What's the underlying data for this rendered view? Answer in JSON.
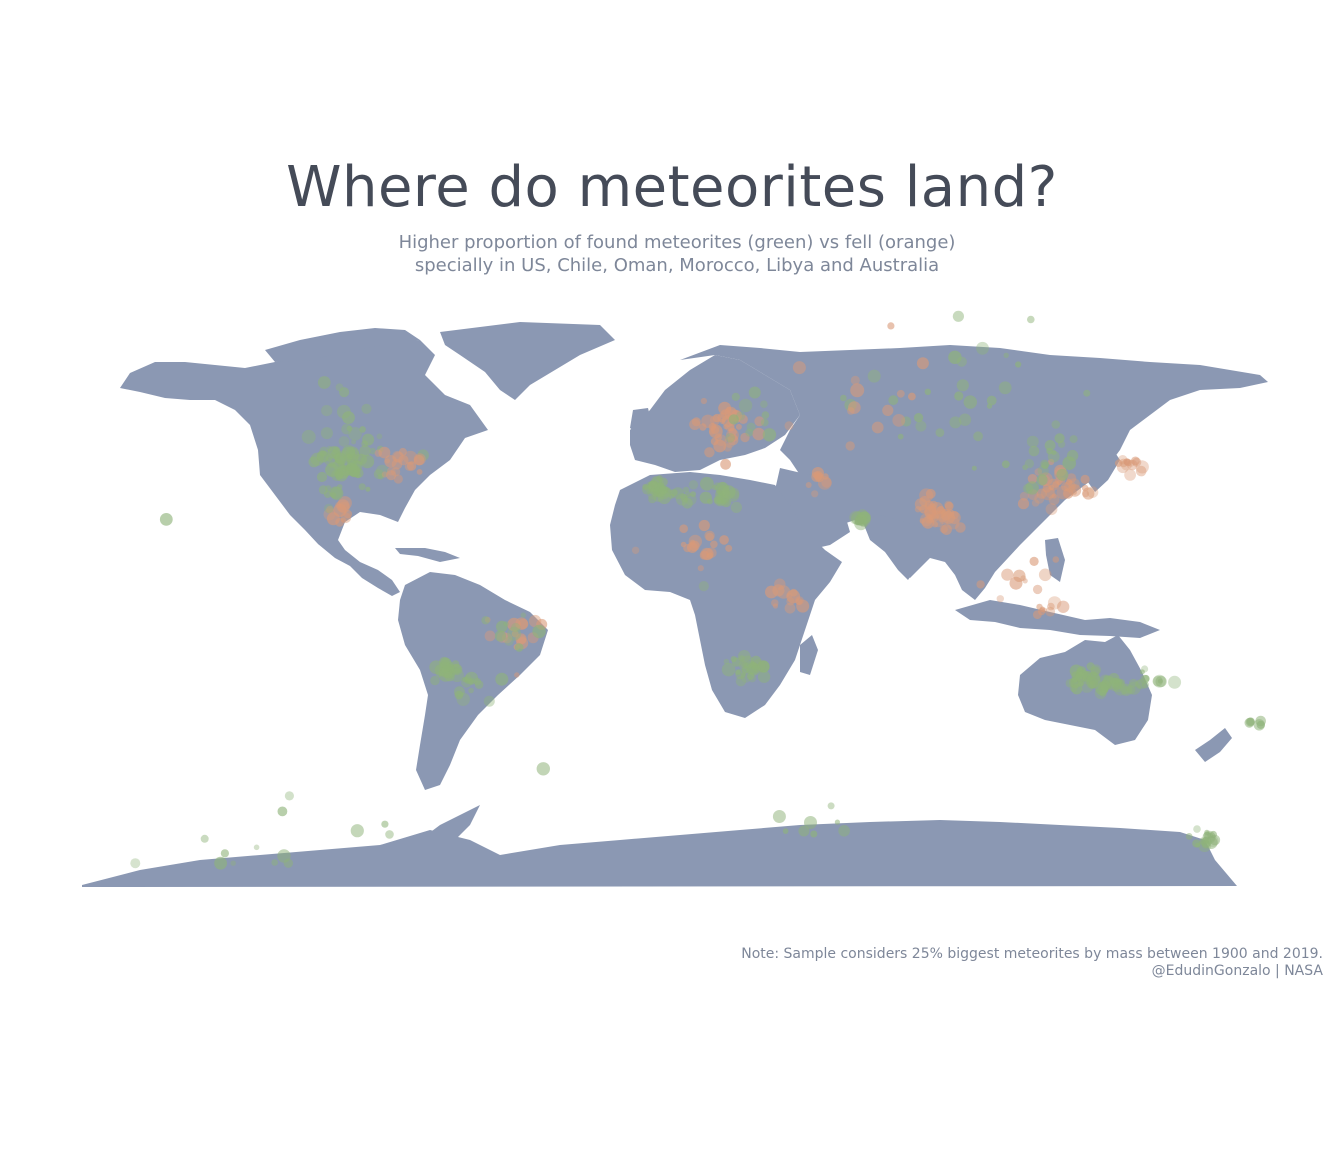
{
  "title": "Where do meteorites land?",
  "subtitle": [
    "Higher proportion of found meteorites (green) vs fell (orange)",
    "specially in US, Chile, Oman, Morocco, Libya and Australia"
  ],
  "caption": [
    "Note: Sample considers 25% biggest meteorites by mass between 1900 and 2019.",
    "@EdudinGonzalo | NASA"
  ],
  "colors": {
    "title": "#454b58",
    "subtitle": "#7e8799",
    "land": "#8b98b3",
    "found": "#8fb37a",
    "fell": "#d99a78",
    "background": "#ffffff"
  },
  "map_data": {
    "type": "point-map",
    "projection": "equirectangular",
    "categories": [
      "found",
      "fell"
    ],
    "clusters": [
      {
        "name": "us-central",
        "category": "found",
        "lon": -100,
        "lat": 38,
        "spread": 12,
        "n": 70
      },
      {
        "name": "us-east",
        "category": "fell",
        "lon": -85,
        "lat": 37,
        "spread": 8,
        "n": 20
      },
      {
        "name": "canada",
        "category": "found",
        "lon": -100,
        "lat": 55,
        "spread": 15,
        "n": 8
      },
      {
        "name": "mexico",
        "category": "fell",
        "lon": -101,
        "lat": 22,
        "spread": 5,
        "n": 12
      },
      {
        "name": "mexico-found",
        "category": "found",
        "lon": -105,
        "lat": 27,
        "spread": 5,
        "n": 8
      },
      {
        "name": "chile-atacama",
        "category": "found",
        "lon": -69,
        "lat": -25,
        "spread": 3,
        "n": 28
      },
      {
        "name": "argentina",
        "category": "found",
        "lon": -62,
        "lat": -30,
        "spread": 6,
        "n": 15
      },
      {
        "name": "brazil",
        "category": "fell",
        "lon": -48,
        "lat": -15,
        "spread": 8,
        "n": 16
      },
      {
        "name": "brazil-found",
        "category": "found",
        "lon": -50,
        "lat": -12,
        "spread": 9,
        "n": 10
      },
      {
        "name": "morocco",
        "category": "found",
        "lon": -6,
        "lat": 30,
        "spread": 4,
        "n": 26
      },
      {
        "name": "algeria",
        "category": "found",
        "lon": 3,
        "lat": 27,
        "spread": 6,
        "n": 15
      },
      {
        "name": "libya",
        "category": "found",
        "lon": 14,
        "lat": 27,
        "spread": 5,
        "n": 22
      },
      {
        "name": "sahel",
        "category": "fell",
        "lon": 8,
        "lat": 12,
        "spread": 10,
        "n": 20
      },
      {
        "name": "europe",
        "category": "fell",
        "lon": 15,
        "lat": 48,
        "spread": 10,
        "n": 45
      },
      {
        "name": "europe-found",
        "category": "found",
        "lon": 20,
        "lat": 52,
        "spread": 12,
        "n": 12
      },
      {
        "name": "oman",
        "category": "found",
        "lon": 56,
        "lat": 20,
        "spread": 2,
        "n": 22
      },
      {
        "name": "middle-east",
        "category": "fell",
        "lon": 44,
        "lat": 32,
        "spread": 6,
        "n": 10
      },
      {
        "name": "russia",
        "category": "found",
        "lon": 90,
        "lat": 58,
        "spread": 30,
        "n": 30
      },
      {
        "name": "russia-fell",
        "category": "fell",
        "lon": 60,
        "lat": 55,
        "spread": 25,
        "n": 14
      },
      {
        "name": "india",
        "category": "fell",
        "lon": 80,
        "lat": 22,
        "spread": 6,
        "n": 40
      },
      {
        "name": "china",
        "category": "fell",
        "lon": 115,
        "lat": 30,
        "spread": 9,
        "n": 40
      },
      {
        "name": "china-found",
        "category": "found",
        "lon": 110,
        "lat": 38,
        "spread": 12,
        "n": 20
      },
      {
        "name": "japan",
        "category": "fell",
        "lon": 137,
        "lat": 36,
        "spread": 4,
        "n": 14
      },
      {
        "name": "southeast-asia",
        "category": "fell",
        "lon": 108,
        "lat": 5,
        "spread": 12,
        "n": 12
      },
      {
        "name": "java",
        "category": "fell",
        "lon": 112,
        "lat": -7,
        "spread": 3,
        "n": 8
      },
      {
        "name": "southern-africa",
        "category": "found",
        "lon": 22,
        "lat": -25,
        "spread": 6,
        "n": 28
      },
      {
        "name": "east-africa",
        "category": "fell",
        "lon": 34,
        "lat": -3,
        "spread": 7,
        "n": 14
      },
      {
        "name": "australia-west",
        "category": "found",
        "lon": 123,
        "lat": -28,
        "spread": 5,
        "n": 35
      },
      {
        "name": "australia-south",
        "category": "found",
        "lon": 132,
        "lat": -30,
        "spread": 5,
        "n": 25
      },
      {
        "name": "australia-east",
        "category": "found",
        "lon": 142,
        "lat": -28,
        "spread": 6,
        "n": 14
      },
      {
        "name": "new-zealand",
        "category": "found",
        "lon": 174,
        "lat": -41,
        "spread": 3,
        "n": 6
      },
      {
        "name": "antarctica-east",
        "category": "found",
        "lon": 160,
        "lat": -77,
        "spread": 4,
        "n": 18
      },
      {
        "name": "antarctica-west",
        "category": "found",
        "lon": -120,
        "lat": -82,
        "spread": 30,
        "n": 14
      },
      {
        "name": "antarctica-mid",
        "category": "found",
        "lon": 40,
        "lat": -72,
        "spread": 10,
        "n": 8
      },
      {
        "name": "hawaii-pacific",
        "category": "found",
        "lon": -155,
        "lat": 20,
        "spread": 1,
        "n": 1
      },
      {
        "name": "south-atlantic",
        "category": "found",
        "lon": -40,
        "lat": -55,
        "spread": 1,
        "n": 1
      },
      {
        "name": "gulf-of-guinea",
        "category": "found",
        "lon": 9,
        "lat": 0,
        "spread": 1,
        "n": 1
      }
    ]
  }
}
